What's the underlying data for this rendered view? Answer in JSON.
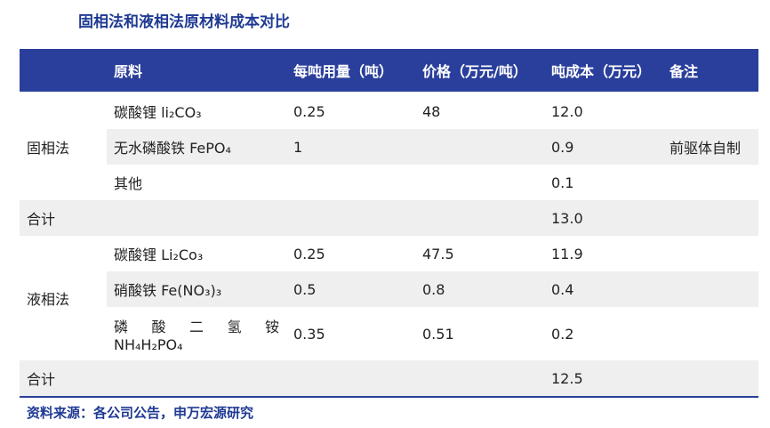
{
  "title": "固相法和液相法原材料成本对比",
  "table": {
    "header": [
      "原料",
      "每吨用量（吨）",
      "价格（万元/吨）",
      "吨成本（万元）",
      "备注"
    ],
    "sections": [
      {
        "label": "固相法",
        "rows": [
          [
            "碳酸锂 li₂CO₃",
            "0.25",
            "48",
            "12.0",
            null
          ],
          [
            "无水磷酸铁 FePO₄",
            "1",
            null,
            "0.9",
            "前驱体自制"
          ],
          [
            "其他",
            null,
            null,
            "0.1",
            null
          ]
        ]
      },
      {
        "label": "合计",
        "rows": [
          [
            null,
            null,
            null,
            "13.0",
            null
          ]
        ]
      },
      {
        "label": "液相法",
        "rows": [
          [
            "碳酸锂 Li₂Co₃",
            "0.25",
            "47.5",
            "11.9",
            null
          ],
          [
            "硝酸铁 Fe(NO₃)₃",
            "0.5",
            "0.8",
            "0.4",
            null
          ],
          [
            [
              "磷酸二氢铵",
              "NH₄H₂PO₄"
            ],
            "0.35",
            "0.51",
            "0.2",
            null
          ]
        ]
      },
      {
        "label": "合计",
        "rows": [
          [
            null,
            null,
            null,
            "12.5",
            null
          ]
        ]
      }
    ]
  },
  "source": "资料来源：各公司公告，申万宏源研究"
}
